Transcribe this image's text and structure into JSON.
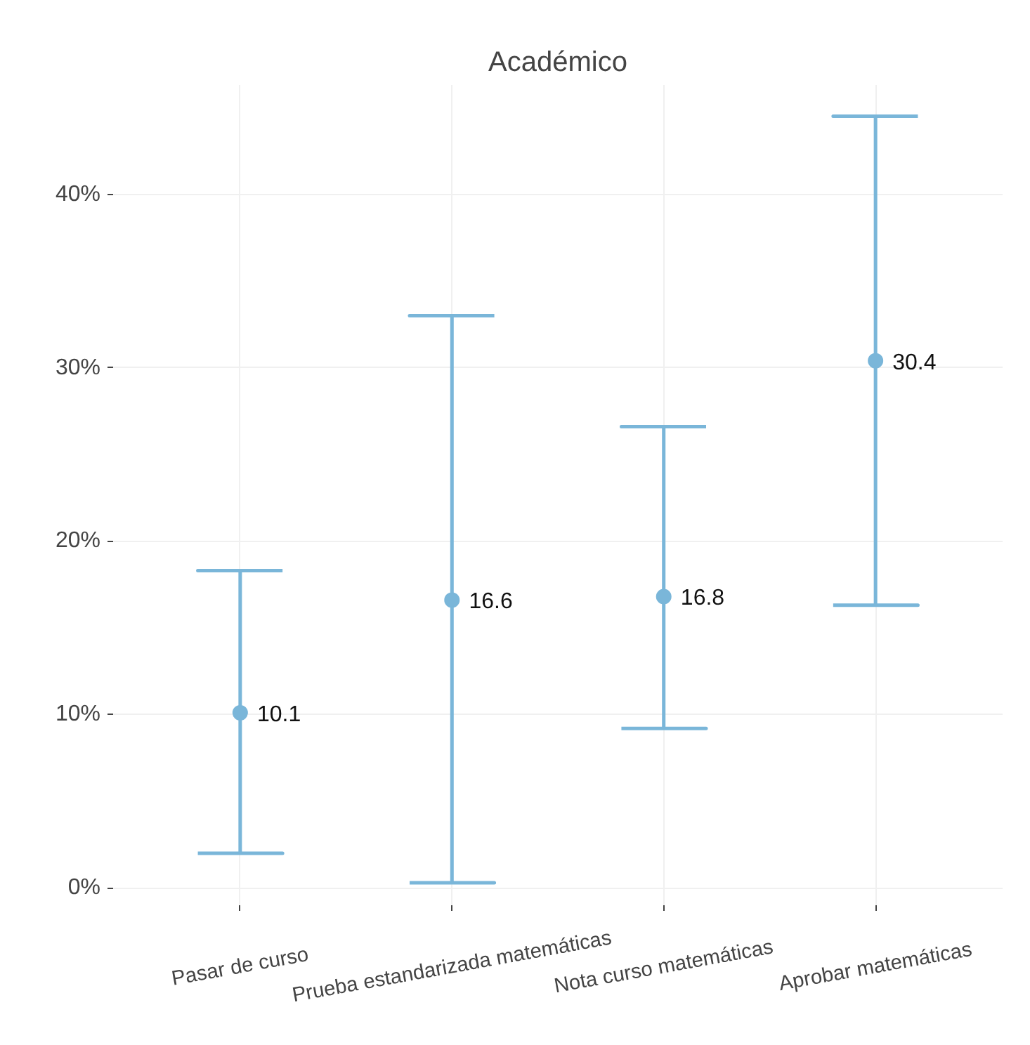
{
  "chart_data": {
    "type": "scatter",
    "title": "Académico",
    "categories": [
      "Pasar de curso",
      "Prueba estandarizada matemáticas",
      "Nota curso matemáticas",
      "Aprobar matemáticas"
    ],
    "values": [
      10.1,
      16.6,
      16.8,
      30.4
    ],
    "errors": [
      [
        2.0,
        18.3
      ],
      [
        0.3,
        33.0
      ],
      [
        9.2,
        26.6
      ],
      [
        16.3,
        44.5
      ]
    ],
    "color": "#7ab6d9",
    "ylim": [
      -1,
      46.3
    ],
    "yticks": [
      {
        "value": 0,
        "label": "0%"
      },
      {
        "value": 10,
        "label": "10%"
      },
      {
        "value": 20,
        "label": "20%"
      },
      {
        "value": 30,
        "label": "30%"
      },
      {
        "value": 40,
        "label": "40%"
      }
    ],
    "grid": true,
    "marker": "circle",
    "data_labels": true
  }
}
